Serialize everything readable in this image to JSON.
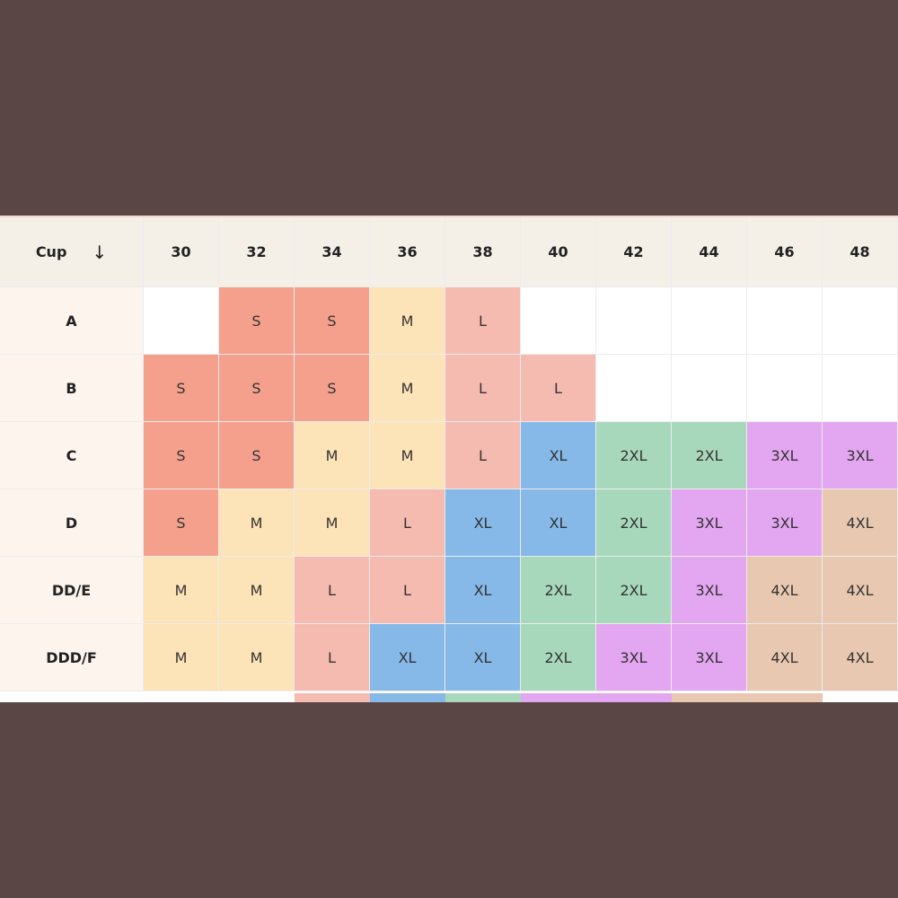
{
  "table": {
    "corner": "Cup",
    "corner_arrow": "↓",
    "columns": [
      30,
      32,
      34,
      36,
      38,
      40,
      42,
      44,
      46,
      48
    ],
    "rows": [
      {
        "cup": "A",
        "sizes": [
          null,
          "S",
          "S",
          "M",
          "L",
          null,
          null,
          null,
          null,
          null
        ]
      },
      {
        "cup": "B",
        "sizes": [
          "S",
          "S",
          "S",
          "M",
          "L",
          "L",
          null,
          null,
          null,
          null
        ]
      },
      {
        "cup": "C",
        "sizes": [
          "S",
          "S",
          "M",
          "M",
          "L",
          "XL",
          "2XL",
          "2XL",
          "3XL",
          "3XL"
        ]
      },
      {
        "cup": "D",
        "sizes": [
          "S",
          "M",
          "M",
          "L",
          "XL",
          "XL",
          "2XL",
          "3XL",
          "3XL",
          "4XL"
        ]
      },
      {
        "cup": "DD/E",
        "sizes": [
          "M",
          "M",
          "L",
          "L",
          "XL",
          "2XL",
          "2XL",
          "3XL",
          "4XL",
          "4XL"
        ]
      },
      {
        "cup": "DDD/F",
        "sizes": [
          "M",
          "M",
          "L",
          "XL",
          "XL",
          "2XL",
          "3XL",
          "3XL",
          "4XL",
          "4XL"
        ]
      }
    ],
    "size_colors": {
      "S": "#f4a08c",
      "M": "#fde3b8",
      "L": "#f5bab0",
      "XL": "#86b8e8",
      "2XL": "#a8d8bc",
      "3XL": "#e3a6f0",
      "4XL": "#e8c8b0"
    }
  }
}
